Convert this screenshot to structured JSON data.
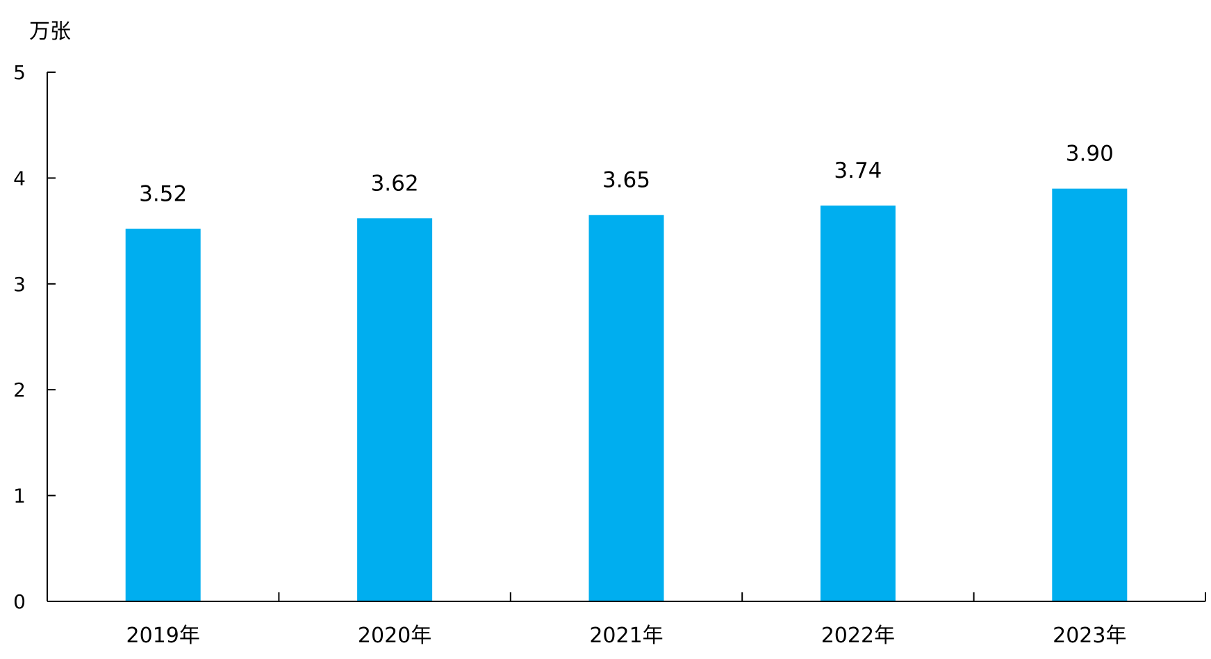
{
  "chart_data": {
    "type": "bar",
    "title": "",
    "xlabel": "",
    "ylabel": "万张",
    "categories": [
      "2019年",
      "2020年",
      "2021年",
      "2022年",
      "2023年"
    ],
    "values": [
      3.52,
      3.62,
      3.65,
      3.74,
      3.9
    ],
    "data_labels": [
      "3.52",
      "3.62",
      "3.65",
      "3.74",
      "3.90"
    ],
    "ylim": [
      0,
      5
    ],
    "yticks": [
      0,
      1,
      2,
      3,
      4,
      5
    ],
    "grid": false,
    "legend": "none",
    "bar_color": "#00AEEF",
    "axis_color": "#000000"
  }
}
